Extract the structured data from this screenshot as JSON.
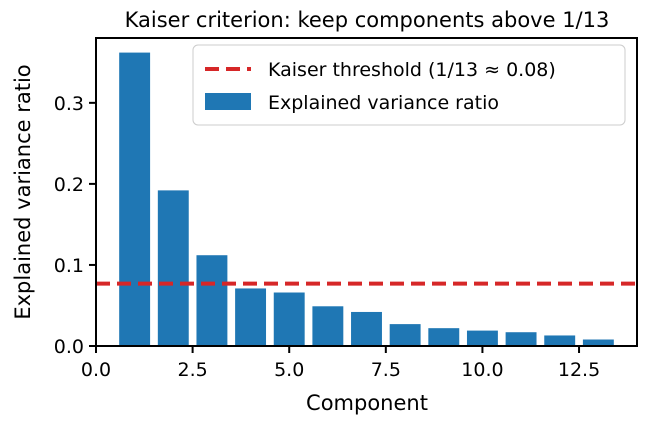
{
  "chart_data": {
    "type": "bar",
    "title": "Kaiser criterion: keep components above 1/13",
    "xlabel": "Component",
    "ylabel": "Explained variance ratio",
    "xlim": [
      0,
      14
    ],
    "ylim": [
      0,
      0.38
    ],
    "xticks": [
      0,
      2.5,
      5,
      7.5,
      10,
      12.5
    ],
    "xtick_labels": [
      "0.0",
      "2.5",
      "5.0",
      "7.5",
      "10.0",
      "12.5"
    ],
    "yticks": [
      0,
      0.1,
      0.2,
      0.3
    ],
    "ytick_labels": [
      "0.0",
      "0.1",
      "0.2",
      "0.3"
    ],
    "x": [
      1,
      2,
      3,
      4,
      5,
      6,
      7,
      8,
      9,
      10,
      11,
      12,
      13
    ],
    "series": [
      {
        "name": "Explained variance ratio",
        "values": [
          0.362,
          0.192,
          0.112,
          0.071,
          0.066,
          0.049,
          0.042,
          0.027,
          0.022,
          0.019,
          0.017,
          0.013,
          0.008
        ],
        "color": "#1f77b4"
      }
    ],
    "threshold": {
      "name": "Kaiser threshold (1/13 ≈ 0.08)",
      "value": 0.0769,
      "color": "#d62728",
      "style": "dashed"
    },
    "legend_position": "top-right",
    "grid": false
  }
}
